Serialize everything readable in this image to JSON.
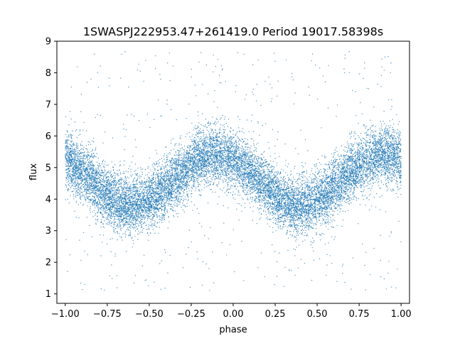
{
  "chart_data": {
    "type": "scatter",
    "title": "1SWASPJ222953.47+261419.0 Period 19017.58398s",
    "xlabel": "phase",
    "ylabel": "flux",
    "xlim": [
      -1.05,
      1.05
    ],
    "ylim": [
      0.7,
      9.0
    ],
    "x_ticks": [
      -1.0,
      -0.75,
      -0.5,
      -0.25,
      0.0,
      0.25,
      0.5,
      0.75,
      1.0
    ],
    "x_tick_labels": [
      "−1.00",
      "−0.75",
      "−0.50",
      "−0.25",
      "0.00",
      "0.25",
      "0.50",
      "0.75",
      "1.00"
    ],
    "y_ticks": [
      1,
      2,
      3,
      4,
      5,
      6,
      7,
      8,
      9
    ],
    "y_tick_labels": [
      "1",
      "2",
      "3",
      "4",
      "5",
      "6",
      "7",
      "8",
      "9"
    ],
    "grid": false,
    "point_color": "#1f77b4",
    "series": [
      {
        "model": "sinusoid",
        "x_range": [
          -1.0,
          1.0
        ],
        "curve": {
          "mean": 4.6,
          "amplitude": 0.8,
          "cycles_per_unit_phase": 1.0,
          "peak_phase": -0.1
        },
        "band_sigma": 0.45,
        "outlier_range": [
          1.1,
          8.7
        ],
        "sample_points": [
          {
            "x": -1.0,
            "y": 5.2
          },
          {
            "x": -0.75,
            "y": 4.6
          },
          {
            "x": -0.6,
            "y": 3.8
          },
          {
            "x": -0.35,
            "y": 4.7
          },
          {
            "x": -0.1,
            "y": 5.4
          },
          {
            "x": 0.15,
            "y": 4.7
          },
          {
            "x": 0.4,
            "y": 3.8
          },
          {
            "x": 0.65,
            "y": 4.6
          },
          {
            "x": 0.9,
            "y": 5.4
          },
          {
            "x": 1.0,
            "y": 5.3
          }
        ]
      }
    ]
  }
}
